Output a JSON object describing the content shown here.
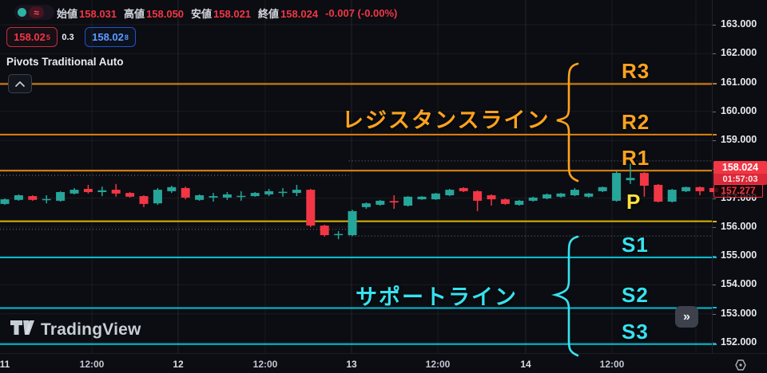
{
  "header": {
    "ohlc": [
      {
        "label": "始値",
        "value": "158.031"
      },
      {
        "label": "高値",
        "value": "158.050"
      },
      {
        "label": "安値",
        "value": "158.021"
      },
      {
        "label": "終値",
        "value": "158.024"
      }
    ],
    "change": "-0.007 (-0.00%)",
    "approx_symbol": "≈"
  },
  "quote": {
    "bid": "158.02",
    "bid_sup": "5",
    "spread": "0.3",
    "ask": "158.02",
    "ask_sup": "8"
  },
  "indicator": {
    "title": "Pivots Traditional Auto"
  },
  "annotations": {
    "R3": "R3",
    "R2": "R2",
    "R1": "R1",
    "P": "P",
    "S1": "S1",
    "S2": "S2",
    "S3": "S3",
    "resistance_label": "レジスタンスライン",
    "support_label": "サポートライン"
  },
  "price_axis": {
    "ticks": [
      "163.000",
      "162.000",
      "161.000",
      "160.000",
      "159.000",
      "158.000",
      "157.000",
      "156.000",
      "155.000",
      "154.000",
      "153.000",
      "152.000"
    ],
    "last_price": "158.024",
    "countdown": "01:57:03",
    "marked_price": "157.277"
  },
  "time_axis": {
    "labels": [
      "11",
      "12:00",
      "12",
      "12:00",
      "13",
      "12:00",
      "14",
      "12:00"
    ]
  },
  "watermark": "TradingView",
  "more_button": "»",
  "colors": {
    "up": "#26a69a",
    "down": "#f23645",
    "resistance_line": "#e0820f",
    "resistance_text": "#ffa21e",
    "pivot_line": "#d9b40c",
    "pivot_text": "#ffe23e",
    "support_line": "#00bfd4",
    "support_text": "#36e2f0",
    "last_price_bg": "#f23645",
    "ask_blue": "#5b9cff"
  },
  "chart_data": {
    "type": "candlestick",
    "y_axis": {
      "ticks": [
        163,
        162,
        161,
        160,
        159,
        158,
        157,
        156,
        155,
        154,
        153,
        152
      ],
      "range": [
        151.6,
        163.6
      ]
    },
    "x_axis": {
      "labels": [
        "11",
        "12:00",
        "12",
        "12:00",
        "13",
        "12:00",
        "14",
        "12:00"
      ]
    },
    "pivots": {
      "R3": 160.95,
      "R2": 159.2,
      "R1": 157.95,
      "P": 156.2,
      "S1": 154.95,
      "S2": 153.2,
      "S3": 151.95
    },
    "last_price": 158.024,
    "marked_price": 157.277,
    "session_lines": [
      {
        "price": 157.79,
        "from": 0.0,
        "to": 0.49
      },
      {
        "price": 158.29,
        "from": 0.49,
        "to": 1.0
      },
      {
        "price": 155.92,
        "from": 0.0,
        "to": 0.49
      },
      {
        "price": 155.69,
        "from": 0.49,
        "to": 1.0
      }
    ],
    "candle_format": [
      "up1_down0",
      "body_top",
      "body_bottom",
      "high",
      "low"
    ],
    "candles": [
      [
        1,
        156.96,
        156.8,
        156.99,
        156.77
      ],
      [
        1,
        157.1,
        156.94,
        157.13,
        156.91
      ],
      [
        0,
        157.07,
        156.94,
        157.1,
        156.91
      ],
      [
        1,
        156.97,
        156.94,
        157.1,
        156.82
      ],
      [
        1,
        157.21,
        156.91,
        157.24,
        156.88
      ],
      [
        1,
        157.29,
        157.16,
        157.35,
        157.13
      ],
      [
        0,
        157.32,
        157.21,
        157.46,
        157.16
      ],
      [
        1,
        157.27,
        157.21,
        157.4,
        157.07
      ],
      [
        0,
        157.29,
        157.16,
        157.49,
        157.05
      ],
      [
        0,
        157.18,
        157.05,
        157.21,
        157.02
      ],
      [
        0,
        157.07,
        156.8,
        157.1,
        156.69
      ],
      [
        1,
        157.29,
        156.82,
        157.35,
        156.77
      ],
      [
        1,
        157.38,
        157.24,
        157.43,
        157.18
      ],
      [
        0,
        157.35,
        157.02,
        157.4,
        156.96
      ],
      [
        1,
        157.1,
        156.94,
        157.13,
        156.91
      ],
      [
        1,
        157.07,
        157.02,
        157.18,
        156.88
      ],
      [
        1,
        157.13,
        157.02,
        157.21,
        156.94
      ],
      [
        1,
        157.08,
        157.05,
        157.24,
        156.91
      ],
      [
        1,
        157.18,
        157.07,
        157.21,
        157.05
      ],
      [
        1,
        157.24,
        157.13,
        157.32,
        157.07
      ],
      [
        1,
        157.22,
        157.18,
        157.35,
        157.05
      ],
      [
        1,
        157.29,
        157.18,
        157.46,
        157.07
      ],
      [
        0,
        157.29,
        156.05,
        157.32,
        156.0
      ],
      [
        0,
        156.05,
        155.72,
        156.08,
        155.67
      ],
      [
        1,
        155.76,
        155.72,
        155.86,
        155.58
      ],
      [
        1,
        156.55,
        155.72,
        156.6,
        155.69
      ],
      [
        1,
        156.82,
        156.69,
        156.85,
        156.63
      ],
      [
        1,
        156.91,
        156.77,
        156.94,
        156.74
      ],
      [
        0,
        156.9,
        156.85,
        157.1,
        156.63
      ],
      [
        1,
        157.05,
        156.74,
        157.07,
        156.71
      ],
      [
        1,
        157.05,
        156.96,
        157.07,
        156.94
      ],
      [
        1,
        157.16,
        156.96,
        157.18,
        156.94
      ],
      [
        1,
        157.29,
        157.1,
        157.32,
        157.07
      ],
      [
        0,
        157.35,
        157.24,
        157.38,
        157.21
      ],
      [
        0,
        157.24,
        156.91,
        157.27,
        156.55
      ],
      [
        0,
        157.1,
        156.96,
        157.13,
        156.74
      ],
      [
        0,
        156.96,
        156.8,
        156.99,
        156.77
      ],
      [
        1,
        156.91,
        156.77,
        156.94,
        156.74
      ],
      [
        1,
        157.02,
        156.91,
        157.05,
        156.88
      ],
      [
        1,
        157.13,
        156.99,
        157.16,
        156.96
      ],
      [
        1,
        157.16,
        157.05,
        157.18,
        157.02
      ],
      [
        1,
        157.29,
        157.1,
        157.35,
        157.07
      ],
      [
        1,
        157.16,
        157.05,
        157.18,
        157.02
      ],
      [
        1,
        157.38,
        157.24,
        157.4,
        157.21
      ],
      [
        1,
        157.87,
        156.91,
        157.93,
        156.88
      ],
      [
        1,
        157.7,
        157.62,
        158.2,
        157.49
      ],
      [
        0,
        157.87,
        157.43,
        157.9,
        157.05
      ],
      [
        0,
        157.46,
        156.88,
        157.49,
        156.85
      ],
      [
        1,
        157.29,
        156.88,
        157.32,
        156.85
      ],
      [
        1,
        157.38,
        157.24,
        157.4,
        157.21
      ],
      [
        0,
        157.38,
        157.24,
        157.4,
        157.1
      ],
      [
        0,
        157.35,
        157.21,
        157.36,
        157.2
      ]
    ]
  }
}
